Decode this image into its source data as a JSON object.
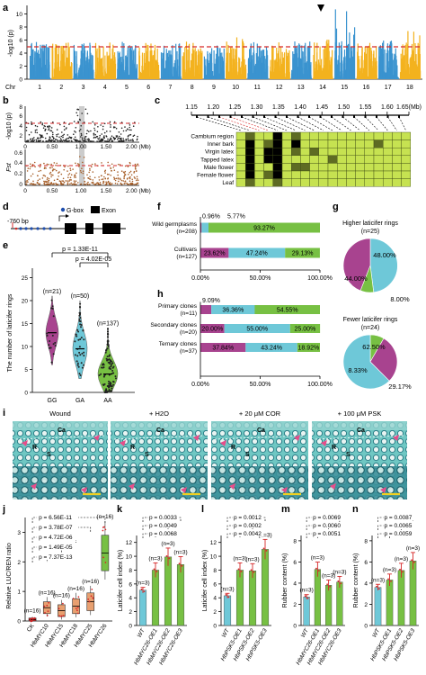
{
  "colors": {
    "blue": "#3a93cf",
    "orange": "#f3b21e",
    "red": "#d62728",
    "green": "#77c043",
    "purple": "#a8438f",
    "cyan": "#6ec8d8",
    "darkgreen": "#2e6b22",
    "hm_bg": "#c6e251"
  },
  "panel_labels": {
    "a": "a",
    "b": "b",
    "c": "c",
    "d": "d",
    "e": "e",
    "f": "f",
    "g": "g",
    "h": "h",
    "i": "i",
    "j": "j",
    "k": "k",
    "l": "l",
    "m": "m",
    "n": "n"
  },
  "panel_a": {
    "ylabel": "-log10 (p)",
    "xlabel": "Chr",
    "yticks": [
      "0",
      "2",
      "4",
      "6",
      "8",
      "10"
    ],
    "chromosomes": [
      "1",
      "2",
      "3",
      "4",
      "5",
      "6",
      "7",
      "8",
      "9",
      "10",
      "11",
      "12",
      "13",
      "14",
      "15",
      "16",
      "17",
      "18"
    ]
  },
  "panel_b": {
    "ylabel_top": "-log10 (p)",
    "yticks_top": [
      "2",
      "4",
      "6",
      "8"
    ],
    "ylabel_bottom": "Fst",
    "yticks_bottom": [
      "0.6",
      "0.4",
      "0.2",
      "0"
    ],
    "xticks": [
      "0",
      "0.50",
      "1.00",
      "1.50",
      "2.00 (Mb)"
    ]
  },
  "panel_c": {
    "ticks": [
      "1.15",
      "1.20",
      "1.25",
      "1.30",
      "1.35",
      "1.40",
      "1.45",
      "1.50",
      "1.55",
      "1.60",
      "1.65(Mb)"
    ],
    "rows": [
      "Cambium region",
      "Inner bark",
      "Virgin latex",
      "Tapped latex",
      "Male flower",
      "Female flower",
      "Leaf"
    ]
  },
  "panel_d": {
    "label": "-760 bp",
    "legend_gbox": "G-box",
    "legend_exon": "Exon"
  },
  "panel_e": {
    "ylabel": "The number of laticifer rings",
    "p1": "p = 1.33E-11",
    "p2": "p = 4.02E-05",
    "groups": [
      "GG",
      "GA",
      "AA"
    ],
    "n": [
      "(n=21)",
      "(n=50)",
      "(n=137)"
    ],
    "yticks": [
      "0",
      "5",
      "10",
      "15",
      "20",
      "25"
    ]
  },
  "panel_f": {
    "rows": [
      {
        "label": "Wild germplasms",
        "n": "(n=208)",
        "values": [
          0.96,
          5.77,
          93.27
        ],
        "labels": [
          "0.96%",
          "5.77%",
          "93.27%"
        ]
      },
      {
        "label": "Cultivars",
        "n": "(n=127)",
        "values": [
          23.62,
          47.24,
          29.13
        ],
        "labels": [
          "23.62%",
          "47.24%",
          "29.13%"
        ]
      }
    ],
    "xticks": [
      "0.00%",
      "50.00%",
      "100.00%"
    ]
  },
  "panel_g": {
    "pies": [
      {
        "title": "Higher laticifer rings",
        "n": "(n=25)",
        "values": [
          48.0,
          8.0,
          44.0
        ],
        "labels": [
          "48.00%",
          "8.00%",
          "44.00%"
        ]
      },
      {
        "title": "Fewer laticifer rings",
        "n": "(n=24)",
        "values": [
          62.5,
          8.33,
          29.17
        ],
        "labels": [
          "62.50%",
          "8.33%",
          "29.17%"
        ]
      }
    ]
  },
  "panel_h": {
    "rows": [
      {
        "label": "Primary clones",
        "n": "(n=11)",
        "values": [
          9.09,
          36.36,
          54.55
        ],
        "labels": [
          "9.09%",
          "36.36%",
          "54.55%"
        ]
      },
      {
        "label": "Secondary clones",
        "n": "(n=20)",
        "values": [
          20.0,
          55.0,
          25.0
        ],
        "labels": [
          "20.00%",
          "55.00%",
          "25.00%"
        ]
      },
      {
        "label": "Ternary clones",
        "n": "(n=37)",
        "values": [
          37.84,
          43.24,
          18.92
        ],
        "labels": [
          "37.84%",
          "43.24%",
          "18.92%"
        ]
      }
    ],
    "xticks": [
      "0.00%",
      "50.00%",
      "100.00%"
    ]
  },
  "panel_i": {
    "titles": [
      "Wound",
      "+ H2O",
      "+ 20 μM COR",
      "+ 100 μM PSK"
    ],
    "tissue_labels": [
      "Ca",
      "R",
      "S"
    ]
  },
  "panel_j": {
    "ylabel": "Relative LUC/REN ratio",
    "yticks": [
      "0",
      "1",
      "2",
      "3"
    ],
    "groups": [
      "CK",
      "HbMYC10",
      "HbMYC15",
      "HbMYC18",
      "HbMYC25",
      "HbMYC26"
    ],
    "n": "(n=16)",
    "pvalues": [
      "p = 6.56E-11",
      "p = 3.78E-07",
      "p = 4.72E-06",
      "p = 1.49E-05",
      "p = 7.37E-13"
    ],
    "chart_data": {
      "type": "box",
      "categories": [
        "CK",
        "HbMYC10",
        "HbMYC15",
        "HbMYC18",
        "HbMYC25",
        "HbMYC26"
      ],
      "medians": [
        0.05,
        0.45,
        0.35,
        0.5,
        0.65,
        2.3
      ],
      "ylim": [
        0,
        3.5
      ]
    }
  },
  "panel_k": {
    "ylabel": "Laticifer cell index (%)",
    "groups": [
      "WT",
      "HbMYC26-OE1",
      "HbMYC26-OE2",
      "HbMYC26-OE3"
    ],
    "n": "(n=3)",
    "pvalues": [
      "p = 0.0033",
      "p = 0.0049",
      "p = 0.0068"
    ],
    "yticks": [
      "0",
      "2",
      "4",
      "6",
      "8",
      "10",
      "12"
    ],
    "chart_data": {
      "type": "bar",
      "categories": [
        "WT",
        "HbMYC26-OE1",
        "HbMYC26-OE2",
        "HbMYC26-OE3"
      ],
      "values": [
        5.1,
        8.0,
        9.9,
        8.8
      ],
      "ylim": [
        0,
        13
      ]
    }
  },
  "panel_l": {
    "ylabel": "Laticifer cell index (%)",
    "groups": [
      "WT",
      "HbPSK5-OE1",
      "HbPSK5-OE2",
      "HbPSK5-OE3"
    ],
    "n": "(n=3)",
    "pvalues": [
      "p = 0.0012",
      "p = 0.0002",
      "p = 0.0042"
    ],
    "yticks": [
      "0",
      "2",
      "4",
      "6",
      "8",
      "10",
      "12"
    ],
    "chart_data": {
      "type": "bar",
      "categories": [
        "WT",
        "HbPSK5-OE1",
        "HbPSK5-OE2",
        "HbPSK5-OE3"
      ],
      "values": [
        4.3,
        8.0,
        7.9,
        11.0
      ],
      "ylim": [
        0,
        13
      ]
    }
  },
  "panel_m": {
    "ylabel": "Rubber content (%)",
    "groups": [
      "WT",
      "HbMYC26-OE1",
      "HbMYC26-OE2",
      "HbMYC26-OE3"
    ],
    "n": "(n=3)",
    "pvalues": [
      "p = 0.0069",
      "p = 0.0060",
      "p = 0.0051"
    ],
    "yticks": [
      "0",
      "2",
      "4",
      "6",
      "8"
    ],
    "chart_data": {
      "type": "bar",
      "categories": [
        "WT",
        "HbMYC26-OE1",
        "HbMYC26-OE2",
        "HbMYC26-OE3"
      ],
      "values": [
        2.7,
        5.3,
        3.8,
        4.1
      ],
      "ylim": [
        0,
        8.5
      ]
    }
  },
  "panel_n": {
    "ylabel": "Rubber content (%)",
    "groups": [
      "WT",
      "HbPSK5-OE1",
      "HbPSK5-OE2",
      "HbPSK5-OE3"
    ],
    "n": "(n=3)",
    "pvalues": [
      "p = 0.0087",
      "p = 0.0065",
      "p = 0.0059"
    ],
    "yticks": [
      "0",
      "2",
      "4",
      "6",
      "8"
    ],
    "chart_data": {
      "type": "bar",
      "categories": [
        "WT",
        "HbPSK5-OE1",
        "HbPSK5-OE2",
        "HbPSK5-OE3"
      ],
      "values": [
        3.6,
        4.3,
        5.2,
        6.1
      ],
      "ylim": [
        0,
        8.5
      ]
    }
  }
}
